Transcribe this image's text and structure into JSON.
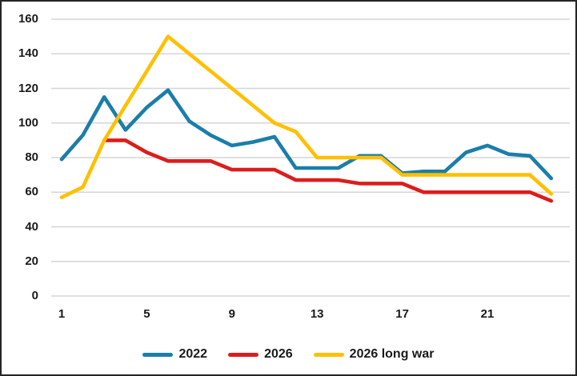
{
  "chart_data": {
    "type": "line",
    "x": [
      1,
      2,
      3,
      4,
      5,
      6,
      7,
      8,
      9,
      10,
      11,
      12,
      13,
      14,
      15,
      16,
      17,
      18,
      19,
      20,
      21,
      22,
      23,
      24
    ],
    "xticks": [
      1,
      5,
      9,
      13,
      17,
      21
    ],
    "yticks": [
      0,
      20,
      40,
      60,
      80,
      100,
      120,
      140,
      160
    ],
    "ylim": [
      0,
      160
    ],
    "xlabel": "",
    "ylabel": "",
    "title": "",
    "grid": "horizontal",
    "gridline_color": "#D6D6D6",
    "legend_position": "bottom",
    "series": [
      {
        "name": "2022",
        "color": "#1B7EA8",
        "values": [
          79,
          93,
          115,
          96,
          109,
          119,
          101,
          93,
          87,
          89,
          92,
          74,
          74,
          74,
          81,
          81,
          71,
          72,
          72,
          83,
          87,
          82,
          81,
          68
        ]
      },
      {
        "name": "2026",
        "color": "#DC1D1D",
        "values": [
          null,
          null,
          90,
          90,
          83,
          78,
          78,
          78,
          73,
          73,
          73,
          67,
          67,
          67,
          65,
          65,
          65,
          60,
          60,
          60,
          60,
          60,
          60,
          55
        ]
      },
      {
        "name": "2026 long war",
        "color": "#FFC000",
        "values": [
          57,
          63,
          90,
          110,
          130,
          150,
          140,
          130,
          120,
          110,
          100,
          95,
          80,
          80,
          80,
          80,
          70,
          70,
          70,
          70,
          70,
          70,
          70,
          59
        ]
      }
    ]
  },
  "legend": {
    "items": [
      {
        "label": "2022"
      },
      {
        "label": "2026"
      },
      {
        "label": "2026 long war"
      }
    ]
  }
}
